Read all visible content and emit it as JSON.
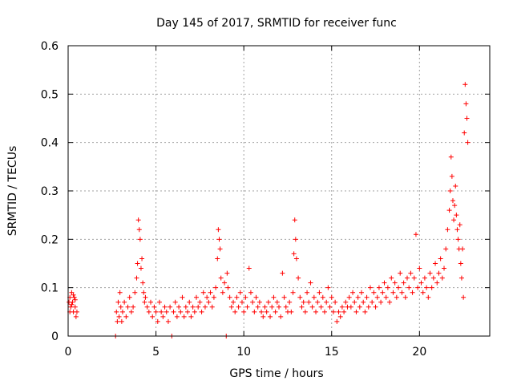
{
  "chart_data": {
    "type": "scatter",
    "title": "Day 145 of 2017, SRMTID for receiver func",
    "xlabel": "GPS time / hours",
    "ylabel": "SRMTID / TECUs",
    "xlim": [
      0,
      24
    ],
    "ylim": [
      0,
      0.6
    ],
    "xticks": [
      0,
      5,
      10,
      15,
      20
    ],
    "yticks": [
      0,
      0.1,
      0.2,
      0.3,
      0.4,
      0.5,
      0.6
    ],
    "grid": true,
    "marker": "+",
    "color": "#ff0000",
    "series": [
      {
        "name": "SRMTID",
        "points": [
          [
            0.05,
            0.07
          ],
          [
            0.1,
            0.08
          ],
          [
            0.15,
            0.06
          ],
          [
            0.2,
            0.09
          ],
          [
            0.25,
            0.07
          ],
          [
            0.3,
            0.05
          ],
          [
            0.35,
            0.08
          ],
          [
            0.4,
            0.06
          ],
          [
            0.45,
            0.04
          ],
          [
            0.5,
            0.05
          ],
          [
            0.1,
            0.05
          ],
          [
            0.2,
            0.065
          ],
          [
            0.3,
            0.085
          ],
          [
            0.4,
            0.075
          ],
          [
            2.7,
            0.0
          ],
          [
            2.75,
            0.05
          ],
          [
            2.8,
            0.03
          ],
          [
            2.85,
            0.07
          ],
          [
            2.9,
            0.04
          ],
          [
            2.95,
            0.09
          ],
          [
            3.0,
            0.06
          ],
          [
            3.05,
            0.03
          ],
          [
            3.1,
            0.05
          ],
          [
            3.2,
            0.07
          ],
          [
            3.3,
            0.04
          ],
          [
            3.4,
            0.06
          ],
          [
            3.5,
            0.08
          ],
          [
            3.6,
            0.05
          ],
          [
            3.7,
            0.06
          ],
          [
            3.8,
            0.09
          ],
          [
            3.9,
            0.12
          ],
          [
            3.95,
            0.15
          ],
          [
            4.0,
            0.24
          ],
          [
            4.05,
            0.22
          ],
          [
            4.1,
            0.2
          ],
          [
            4.15,
            0.14
          ],
          [
            4.2,
            0.16
          ],
          [
            4.25,
            0.11
          ],
          [
            4.3,
            0.09
          ],
          [
            4.35,
            0.07
          ],
          [
            4.4,
            0.08
          ],
          [
            4.5,
            0.06
          ],
          [
            4.6,
            0.05
          ],
          [
            4.7,
            0.07
          ],
          [
            4.8,
            0.04
          ],
          [
            4.9,
            0.06
          ],
          [
            5.0,
            0.05
          ],
          [
            5.1,
            0.03
          ],
          [
            5.2,
            0.07
          ],
          [
            5.3,
            0.05
          ],
          [
            5.4,
            0.04
          ],
          [
            5.5,
            0.06
          ],
          [
            5.6,
            0.05
          ],
          [
            5.7,
            0.03
          ],
          [
            5.8,
            0.06
          ],
          [
            5.9,
            0.0
          ],
          [
            6.0,
            0.05
          ],
          [
            6.1,
            0.07
          ],
          [
            6.2,
            0.04
          ],
          [
            6.3,
            0.06
          ],
          [
            6.4,
            0.05
          ],
          [
            6.5,
            0.08
          ],
          [
            6.6,
            0.04
          ],
          [
            6.7,
            0.06
          ],
          [
            6.8,
            0.05
          ],
          [
            6.9,
            0.07
          ],
          [
            7.0,
            0.04
          ],
          [
            7.1,
            0.06
          ],
          [
            7.2,
            0.05
          ],
          [
            7.3,
            0.08
          ],
          [
            7.4,
            0.06
          ],
          [
            7.5,
            0.07
          ],
          [
            7.6,
            0.05
          ],
          [
            7.7,
            0.09
          ],
          [
            7.8,
            0.06
          ],
          [
            7.9,
            0.08
          ],
          [
            8.0,
            0.07
          ],
          [
            8.1,
            0.09
          ],
          [
            8.2,
            0.06
          ],
          [
            8.3,
            0.08
          ],
          [
            8.4,
            0.1
          ],
          [
            8.5,
            0.16
          ],
          [
            8.55,
            0.22
          ],
          [
            8.6,
            0.2
          ],
          [
            8.65,
            0.18
          ],
          [
            8.7,
            0.12
          ],
          [
            8.8,
            0.09
          ],
          [
            8.9,
            0.11
          ],
          [
            9.0,
            0.0
          ],
          [
            9.05,
            0.13
          ],
          [
            9.1,
            0.1
          ],
          [
            9.2,
            0.08
          ],
          [
            9.3,
            0.06
          ],
          [
            9.4,
            0.07
          ],
          [
            9.5,
            0.05
          ],
          [
            9.6,
            0.08
          ],
          [
            9.7,
            0.06
          ],
          [
            9.8,
            0.09
          ],
          [
            9.9,
            0.07
          ],
          [
            10.0,
            0.05
          ],
          [
            10.1,
            0.08
          ],
          [
            10.2,
            0.06
          ],
          [
            10.3,
            0.14
          ],
          [
            10.4,
            0.09
          ],
          [
            10.5,
            0.07
          ],
          [
            10.6,
            0.05
          ],
          [
            10.7,
            0.08
          ],
          [
            10.8,
            0.06
          ],
          [
            10.9,
            0.07
          ],
          [
            11.0,
            0.05
          ],
          [
            11.1,
            0.04
          ],
          [
            11.2,
            0.06
          ],
          [
            11.3,
            0.05
          ],
          [
            11.4,
            0.07
          ],
          [
            11.5,
            0.04
          ],
          [
            11.6,
            0.06
          ],
          [
            11.7,
            0.08
          ],
          [
            11.8,
            0.05
          ],
          [
            11.9,
            0.07
          ],
          [
            12.0,
            0.06
          ],
          [
            12.1,
            0.04
          ],
          [
            12.2,
            0.13
          ],
          [
            12.3,
            0.08
          ],
          [
            12.4,
            0.06
          ],
          [
            12.5,
            0.05
          ],
          [
            12.6,
            0.07
          ],
          [
            12.7,
            0.05
          ],
          [
            12.8,
            0.09
          ],
          [
            12.85,
            0.17
          ],
          [
            12.9,
            0.24
          ],
          [
            12.95,
            0.2
          ],
          [
            13.0,
            0.16
          ],
          [
            13.1,
            0.12
          ],
          [
            13.2,
            0.08
          ],
          [
            13.3,
            0.06
          ],
          [
            13.4,
            0.07
          ],
          [
            13.5,
            0.05
          ],
          [
            13.6,
            0.09
          ],
          [
            13.7,
            0.07
          ],
          [
            13.8,
            0.11
          ],
          [
            13.9,
            0.06
          ],
          [
            14.0,
            0.08
          ],
          [
            14.1,
            0.05
          ],
          [
            14.2,
            0.07
          ],
          [
            14.3,
            0.09
          ],
          [
            14.4,
            0.06
          ],
          [
            14.5,
            0.08
          ],
          [
            14.6,
            0.05
          ],
          [
            14.7,
            0.07
          ],
          [
            14.8,
            0.1
          ],
          [
            14.9,
            0.06
          ],
          [
            15.0,
            0.08
          ],
          [
            15.1,
            0.05
          ],
          [
            15.2,
            0.07
          ],
          [
            15.3,
            0.03
          ],
          [
            15.4,
            0.05
          ],
          [
            15.5,
            0.04
          ],
          [
            15.6,
            0.06
          ],
          [
            15.7,
            0.05
          ],
          [
            15.8,
            0.07
          ],
          [
            15.9,
            0.06
          ],
          [
            16.0,
            0.08
          ],
          [
            16.1,
            0.06
          ],
          [
            16.2,
            0.09
          ],
          [
            16.3,
            0.07
          ],
          [
            16.4,
            0.05
          ],
          [
            16.5,
            0.08
          ],
          [
            16.6,
            0.06
          ],
          [
            16.7,
            0.09
          ],
          [
            16.8,
            0.07
          ],
          [
            16.9,
            0.05
          ],
          [
            17.0,
            0.08
          ],
          [
            17.1,
            0.06
          ],
          [
            17.2,
            0.1
          ],
          [
            17.3,
            0.07
          ],
          [
            17.4,
            0.09
          ],
          [
            17.5,
            0.06
          ],
          [
            17.6,
            0.08
          ],
          [
            17.7,
            0.1
          ],
          [
            17.8,
            0.07
          ],
          [
            17.9,
            0.09
          ],
          [
            18.0,
            0.11
          ],
          [
            18.1,
            0.08
          ],
          [
            18.2,
            0.1
          ],
          [
            18.3,
            0.07
          ],
          [
            18.4,
            0.12
          ],
          [
            18.5,
            0.09
          ],
          [
            18.6,
            0.11
          ],
          [
            18.7,
            0.08
          ],
          [
            18.8,
            0.1
          ],
          [
            18.9,
            0.13
          ],
          [
            19.0,
            0.09
          ],
          [
            19.1,
            0.11
          ],
          [
            19.2,
            0.08
          ],
          [
            19.3,
            0.12
          ],
          [
            19.4,
            0.1
          ],
          [
            19.5,
            0.13
          ],
          [
            19.6,
            0.09
          ],
          [
            19.7,
            0.12
          ],
          [
            19.8,
            0.21
          ],
          [
            19.9,
            0.1
          ],
          [
            20.0,
            0.14
          ],
          [
            20.1,
            0.11
          ],
          [
            20.2,
            0.09
          ],
          [
            20.3,
            0.12
          ],
          [
            20.4,
            0.1
          ],
          [
            20.5,
            0.08
          ],
          [
            20.6,
            0.13
          ],
          [
            20.7,
            0.1
          ],
          [
            20.8,
            0.12
          ],
          [
            20.9,
            0.15
          ],
          [
            21.0,
            0.11
          ],
          [
            21.1,
            0.13
          ],
          [
            21.2,
            0.16
          ],
          [
            21.3,
            0.12
          ],
          [
            21.4,
            0.14
          ],
          [
            21.5,
            0.18
          ],
          [
            21.6,
            0.22
          ],
          [
            21.7,
            0.26
          ],
          [
            21.75,
            0.3
          ],
          [
            21.8,
            0.37
          ],
          [
            21.85,
            0.33
          ],
          [
            21.9,
            0.28
          ],
          [
            21.95,
            0.24
          ],
          [
            22.0,
            0.27
          ],
          [
            22.05,
            0.31
          ],
          [
            22.1,
            0.25
          ],
          [
            22.15,
            0.22
          ],
          [
            22.2,
            0.2
          ],
          [
            22.25,
            0.18
          ],
          [
            22.3,
            0.23
          ],
          [
            22.35,
            0.15
          ],
          [
            22.4,
            0.12
          ],
          [
            22.45,
            0.18
          ],
          [
            22.5,
            0.08
          ],
          [
            22.55,
            0.42
          ],
          [
            22.6,
            0.52
          ],
          [
            22.65,
            0.48
          ],
          [
            22.7,
            0.45
          ],
          [
            22.75,
            0.4
          ]
        ]
      }
    ]
  }
}
